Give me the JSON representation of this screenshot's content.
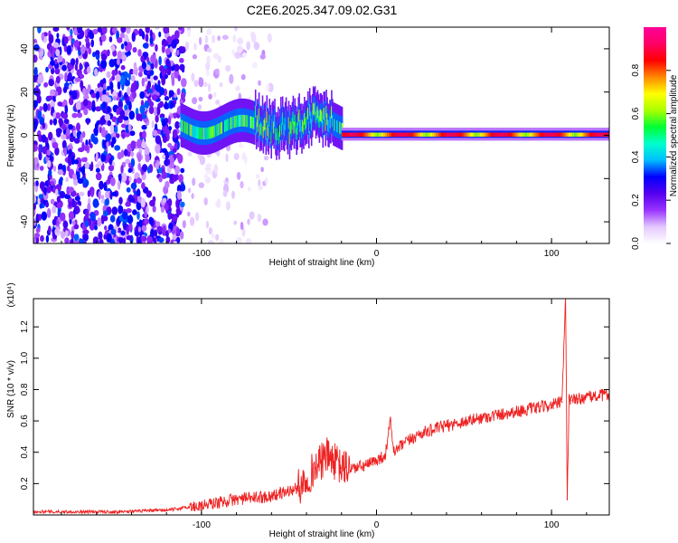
{
  "title": "C2E6.2025.347.09.02.G31",
  "chart_data": [
    {
      "type": "heatmap",
      "name": "spectrogram",
      "xlabel": "Height of straight line (km)",
      "ylabel": "Frequency (Hz)",
      "xlim": [
        -196,
        133
      ],
      "ylim": [
        -50,
        50
      ],
      "xticks": [
        -100,
        0,
        100
      ],
      "yticks": [
        -40,
        -20,
        0,
        20,
        40
      ],
      "colorbar": {
        "label": "Normalized spectral amplitude",
        "range": [
          0,
          1
        ],
        "ticks": [
          0.0,
          0.2,
          0.4,
          0.6,
          0.8
        ],
        "colormap": [
          "#ffffff",
          "#e3c8ff",
          "#9933ff",
          "#5500ee",
          "#0000ff",
          "#00bfff",
          "#00ffcc",
          "#00ff33",
          "#aaff00",
          "#ffff00",
          "#ff8800",
          "#ff0000",
          "#ff0066",
          "#ff0099"
        ]
      },
      "features": [
        {
          "region": "noise",
          "x_range": [
            -196,
            -110
          ],
          "freq_range": [
            -50,
            50
          ],
          "amplitude": 0.25
        },
        {
          "region": "sparse noise",
          "x_range": [
            -110,
            -60
          ],
          "freq_range": [
            -50,
            50
          ],
          "amplitude": 0.08
        },
        {
          "region": "broadband onset",
          "x_range": [
            -112,
            -20
          ],
          "freq_center": 4,
          "freq_width": 10,
          "amplitude": 0.55
        },
        {
          "region": "tonal line",
          "x_range": [
            -20,
            133
          ],
          "freq_center": 0.5,
          "freq_width": 3,
          "amplitude": 0.9
        }
      ]
    },
    {
      "type": "line",
      "name": "snr",
      "xlabel": "Height of straight line (km)",
      "ylabel": "SNR (10 * v/v)",
      "y_multiplier": "(x10⁴)",
      "xlim": [
        -196,
        133
      ],
      "ylim": [
        0,
        1.38
      ],
      "xticks": [
        -100,
        0,
        100
      ],
      "yticks": [
        0.2,
        0.4,
        0.6,
        0.8,
        1.0,
        1.2
      ],
      "color": "#ee2222",
      "series": [
        {
          "name": "SNR",
          "x": [
            -196,
            -150,
            -120,
            -100,
            -80,
            -60,
            -45,
            -35,
            -28,
            -20,
            -12,
            -5,
            0,
            5,
            8,
            10,
            15,
            25,
            40,
            60,
            80,
            100,
            106,
            108,
            109,
            110,
            112,
            115,
            120,
            133
          ],
          "y": [
            0.02,
            0.02,
            0.03,
            0.06,
            0.1,
            0.12,
            0.17,
            0.3,
            0.38,
            0.3,
            0.3,
            0.32,
            0.35,
            0.38,
            0.6,
            0.4,
            0.45,
            0.52,
            0.57,
            0.62,
            0.66,
            0.7,
            0.72,
            1.38,
            0.1,
            0.75,
            0.73,
            0.74,
            0.75,
            0.77
          ]
        }
      ]
    }
  ]
}
